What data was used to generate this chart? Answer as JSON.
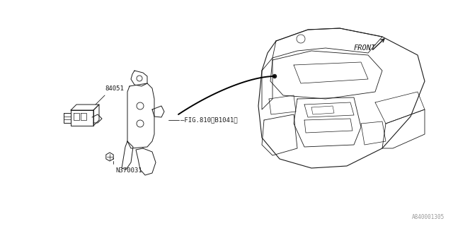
{
  "background_color": "#ffffff",
  "line_color": "#1a1a1a",
  "text_color": "#1a1a1a",
  "diagram_id": "A840001305",
  "labels": {
    "part_84051": "84051",
    "part_N370031": "N370031",
    "fig_ref": "FIG.810<B1041>",
    "front": "FRONT",
    "diagram_id": "A840001305"
  },
  "font_size_label": 6.5,
  "font_size_id": 5.5,
  "font_size_front": 7.5
}
